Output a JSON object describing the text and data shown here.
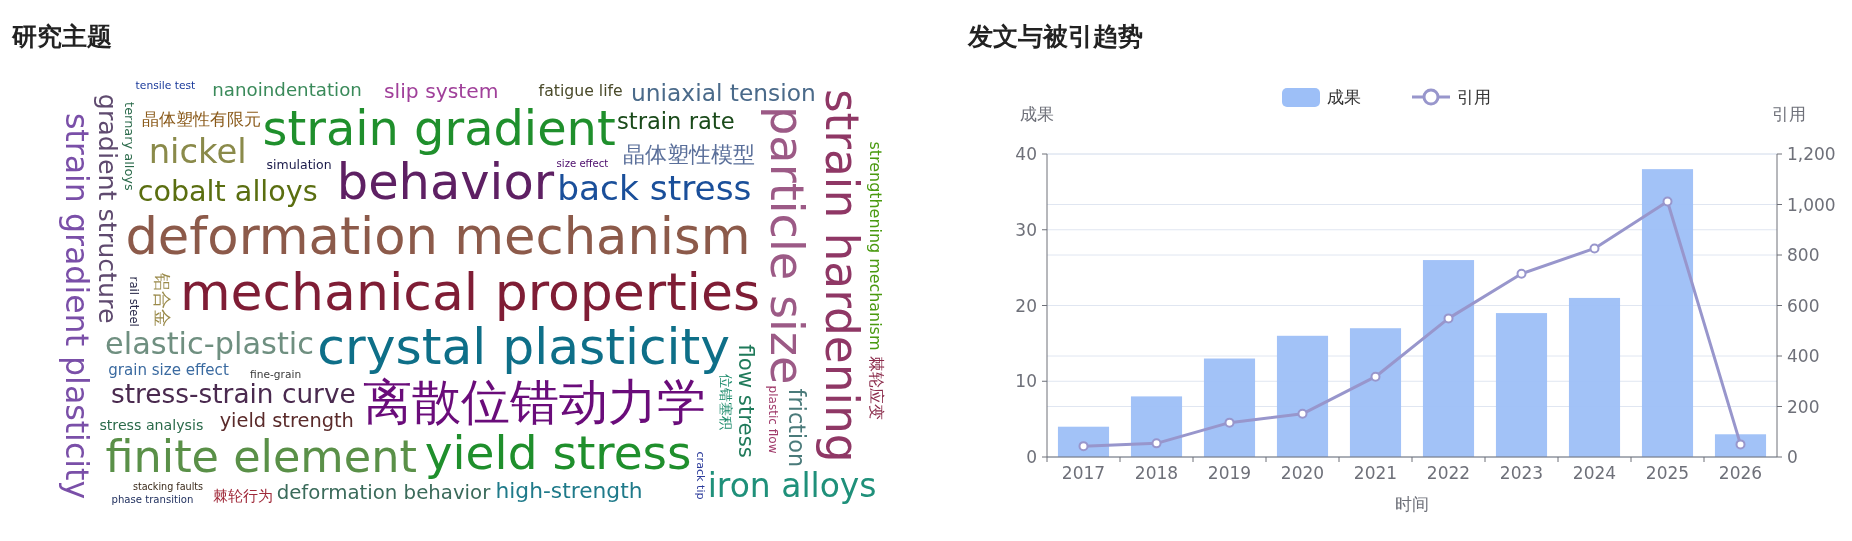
{
  "chart_data": [
    {
      "type": "other",
      "title": "研究主题",
      "annotations": [
        "mechanical properties",
        "deformation mechanism",
        "crystal plasticity",
        "behavior",
        "离散位错动力学",
        "strain gradient",
        "yield stress",
        "particle size",
        "strain hardening",
        "finite element",
        "strain gradient plasticity",
        "stress-strain curve",
        "elastic-plastic",
        "gradient structure",
        "back stress",
        "cobalt alloys",
        "iron alloys",
        "uniaxial tension",
        "yield strength",
        "晶体塑性模型",
        "high-strength",
        "flow stress",
        "nickel",
        "slip system",
        "deformation behavior",
        "strain rate",
        "strengthening mechanism",
        "nanoindentation",
        "grain size effect",
        "晶体塑性有限元",
        "stress analysis",
        "friction",
        "fatigue life",
        "ternary alloys",
        "simulation",
        "plastic flow",
        "棘轮应变",
        "棘轮行为",
        "铝合金",
        "位错塞积",
        "rail steel",
        "crack tip",
        "fine-grain",
        "size effect",
        "stacking faults",
        "tensile test",
        "phase transition"
      ],
      "colors": [
        "#7f1d35",
        "#8c5a4a",
        "#0e6f88",
        "#5e2063",
        "#6a0c7a",
        "#1f8f2c",
        "#1f8f2c",
        "#9c5a86",
        "#8f3765",
        "#5a9048",
        "#7a4fa8",
        "#4a2a4f",
        "#6f8f80",
        "#5f4a6f",
        "#1a4f9a",
        "#5a6e10",
        "#1f907a",
        "#4a6a8a",
        "#5a2a2a",
        "#5a6f9a",
        "#1f7a8a",
        "#1f7a5a",
        "#8a8a4a",
        "#a0409a",
        "#3a6a5a",
        "#1a4a1a",
        "#4a9a10",
        "#3a8a5a",
        "#3a6aa0",
        "#8a5a1a",
        "#2a6a4a",
        "#4a7a7a",
        "#4a4a2a",
        "#2a6a4a",
        "#1a1a4a",
        "#a03a6a",
        "#8a2a4a",
        "#a02a3a",
        "#9a8a4a",
        "#1a8a6a",
        "#2a2a4a",
        "#2a3a9a",
        "#3a3a3a",
        "#4a0a6a",
        "#3a2a1a",
        "#1a3a9a",
        "#1a2a5a"
      ]
    },
    {
      "type": "bar",
      "title": "发文与被引趋势",
      "xlabel": "时间",
      "ylabel": "成果",
      "y2label": "引用",
      "categories": [
        "2017",
        "2018",
        "2019",
        "2020",
        "2021",
        "2022",
        "2023",
        "2024",
        "2025",
        "2026"
      ],
      "series": [
        {
          "name": "成果",
          "type": "bar",
          "color": "#9dbff7",
          "values": [
            4,
            8,
            13,
            16,
            17,
            26,
            19,
            21,
            38,
            3
          ]
        },
        {
          "name": "引用",
          "type": "line",
          "axis": "y2",
          "color": "#9896cc",
          "values": [
            43,
            54,
            136,
            171,
            318,
            549,
            726,
            826,
            1012,
            50
          ]
        }
      ],
      "ylim": [
        0,
        40
      ],
      "yticks": [
        0,
        10,
        20,
        30,
        40
      ],
      "y2lim": [
        0,
        1200
      ],
      "y2ticks": [
        0,
        200,
        400,
        600,
        800,
        {
          "value": 1000,
          "label": "1,000"
        },
        {
          "value": 1200,
          "label": "1,200"
        }
      ],
      "grid": true,
      "legend": "top",
      "marker": "circle"
    }
  ]
}
